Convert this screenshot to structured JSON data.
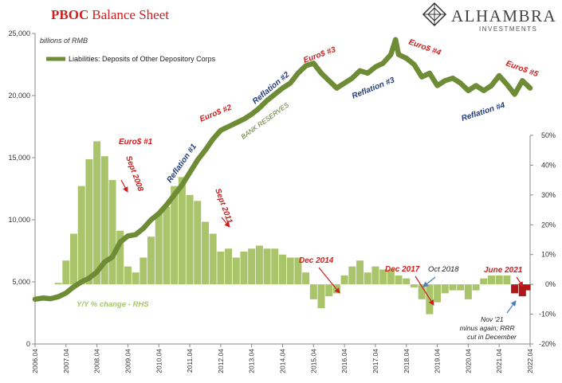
{
  "header": {
    "title_bold": "PBOC",
    "title_rest": "Balance Sheet",
    "brand_name": "ALHAMBRA",
    "brand_sub": "INVESTMENTS"
  },
  "colors": {
    "title_red": "#cc1f1f",
    "line_green": "#6e8c35",
    "bar_green": "#a9c46a",
    "bar_red": "#b01818",
    "ann_red": "#cc1f1f",
    "ann_blue": "#233c7a",
    "ann_green": "#5e7b2c",
    "arrow_red": "#cc1f1f",
    "arrow_blue": "#4d7fc0"
  },
  "chart_data": {
    "type": "line+bar",
    "unit_label": "billions of RMB",
    "left_axis": {
      "min": 0,
      "max": 25000,
      "ticks": [
        0,
        5000,
        10000,
        15000,
        20000,
        25000
      ],
      "tick_labels": [
        "0",
        "5,000",
        "10,000",
        "15,000",
        "20,000",
        "25,000"
      ]
    },
    "right_axis": {
      "min": -20,
      "max": 50,
      "ticks": [
        -20,
        -10,
        0,
        10,
        20,
        30,
        40,
        50
      ],
      "tick_labels": [
        "-20%",
        "-10%",
        "0%",
        "10%",
        "20%",
        "30%",
        "40%",
        "50%"
      ]
    },
    "x_axis": {
      "start": 2006.25,
      "end": 2022.25,
      "tick_labels": [
        "2006.04",
        "2007.04",
        "2008.04",
        "2009.04",
        "2010.04",
        "2011.04",
        "2012.04",
        "2013.04",
        "2014.04",
        "2015.04",
        "2016.04",
        "2017.04",
        "2018.04",
        "2019.04",
        "2020.04",
        "2021.04",
        "2022.04"
      ]
    },
    "line_series": {
      "name": "Liabilities: Deposits of Other Depository Corps",
      "points": [
        [
          2006.25,
          3600
        ],
        [
          2006.5,
          3700
        ],
        [
          2006.75,
          3650
        ],
        [
          2007.0,
          3800
        ],
        [
          2007.25,
          4100
        ],
        [
          2007.5,
          4600
        ],
        [
          2007.75,
          5000
        ],
        [
          2008.0,
          5300
        ],
        [
          2008.25,
          5800
        ],
        [
          2008.5,
          6600
        ],
        [
          2008.75,
          7000
        ],
        [
          2009.0,
          8200
        ],
        [
          2009.25,
          8700
        ],
        [
          2009.5,
          8800
        ],
        [
          2009.75,
          9300
        ],
        [
          2010.0,
          10000
        ],
        [
          2010.25,
          10500
        ],
        [
          2010.5,
          11200
        ],
        [
          2010.75,
          12000
        ],
        [
          2011.0,
          12800
        ],
        [
          2011.25,
          13800
        ],
        [
          2011.5,
          14800
        ],
        [
          2011.75,
          15600
        ],
        [
          2012.0,
          16500
        ],
        [
          2012.25,
          17200
        ],
        [
          2012.5,
          17500
        ],
        [
          2012.75,
          17800
        ],
        [
          2013.0,
          18100
        ],
        [
          2013.25,
          18500
        ],
        [
          2013.5,
          19000
        ],
        [
          2013.75,
          19600
        ],
        [
          2014.0,
          20100
        ],
        [
          2014.25,
          20600
        ],
        [
          2014.5,
          21000
        ],
        [
          2014.75,
          21800
        ],
        [
          2015.0,
          22400
        ],
        [
          2015.25,
          22600
        ],
        [
          2015.5,
          21800
        ],
        [
          2015.75,
          21200
        ],
        [
          2016.0,
          20600
        ],
        [
          2016.25,
          21000
        ],
        [
          2016.5,
          21400
        ],
        [
          2016.75,
          22000
        ],
        [
          2017.0,
          21800
        ],
        [
          2017.25,
          22300
        ],
        [
          2017.5,
          22600
        ],
        [
          2017.75,
          23300
        ],
        [
          2017.9,
          24500
        ],
        [
          2018.0,
          23300
        ],
        [
          2018.25,
          23000
        ],
        [
          2018.5,
          22500
        ],
        [
          2018.75,
          21500
        ],
        [
          2019.0,
          21800
        ],
        [
          2019.25,
          20800
        ],
        [
          2019.5,
          21200
        ],
        [
          2019.75,
          21400
        ],
        [
          2020.0,
          21000
        ],
        [
          2020.25,
          20400
        ],
        [
          2020.5,
          20800
        ],
        [
          2020.75,
          20400
        ],
        [
          2021.0,
          20800
        ],
        [
          2021.25,
          21600
        ],
        [
          2021.5,
          20900
        ],
        [
          2021.75,
          20100
        ],
        [
          2022.0,
          21200
        ],
        [
          2022.25,
          20600
        ]
      ]
    },
    "bar_series": {
      "name": "Y/Y % change - RHS",
      "points": [
        [
          2007.0,
          0.5
        ],
        [
          2007.25,
          8
        ],
        [
          2007.5,
          17
        ],
        [
          2007.75,
          33
        ],
        [
          2008.0,
          42
        ],
        [
          2008.25,
          48
        ],
        [
          2008.5,
          43
        ],
        [
          2008.75,
          35
        ],
        [
          2009.0,
          18
        ],
        [
          2009.25,
          6
        ],
        [
          2009.5,
          4
        ],
        [
          2009.75,
          9
        ],
        [
          2010.0,
          16
        ],
        [
          2010.25,
          24
        ],
        [
          2010.5,
          26
        ],
        [
          2010.75,
          33
        ],
        [
          2011.0,
          36
        ],
        [
          2011.25,
          30
        ],
        [
          2011.5,
          28
        ],
        [
          2011.75,
          21
        ],
        [
          2012.0,
          17
        ],
        [
          2012.25,
          11
        ],
        [
          2012.5,
          12
        ],
        [
          2012.75,
          9
        ],
        [
          2013.0,
          11
        ],
        [
          2013.25,
          12
        ],
        [
          2013.5,
          13
        ],
        [
          2013.75,
          12
        ],
        [
          2014.0,
          12
        ],
        [
          2014.25,
          10
        ],
        [
          2014.5,
          9
        ],
        [
          2014.75,
          9
        ],
        [
          2015.0,
          4
        ],
        [
          2015.25,
          -5
        ],
        [
          2015.5,
          -8
        ],
        [
          2015.75,
          -4
        ],
        [
          2016.0,
          -3
        ],
        [
          2016.25,
          3
        ],
        [
          2016.5,
          6
        ],
        [
          2016.75,
          8
        ],
        [
          2017.0,
          4
        ],
        [
          2017.25,
          6
        ],
        [
          2017.5,
          5
        ],
        [
          2017.75,
          5
        ],
        [
          2018.0,
          3
        ],
        [
          2018.25,
          2
        ],
        [
          2018.5,
          -1
        ],
        [
          2018.75,
          -5
        ],
        [
          2019.0,
          -10
        ],
        [
          2019.25,
          -6
        ],
        [
          2019.5,
          -3
        ],
        [
          2019.75,
          -2
        ],
        [
          2020.0,
          -2
        ],
        [
          2020.25,
          -5
        ],
        [
          2020.5,
          -2
        ],
        [
          2020.75,
          2
        ],
        [
          2021.0,
          3
        ],
        [
          2021.25,
          3
        ],
        [
          2021.5,
          3
        ],
        [
          2021.75,
          -3
        ],
        [
          2022.0,
          -4
        ],
        [
          2022.15,
          -2
        ]
      ]
    },
    "annotations": {
      "euro1": "Euro$ #1",
      "sept2008": "Sept 2008",
      "euro2": "Euro$ #2",
      "sept2011": "Sept 2011",
      "euro3": "Euro$ #3",
      "euro4": "Euro$ #4",
      "euro5": "Euro$ #5",
      "reflation1": "Reflation #1",
      "reflation2": "Reflation #2",
      "reflation3": "Reflation #3",
      "reflation4": "Reflation #4",
      "bank_reserves": "BANK RESERVES",
      "dec2014": "Dec 2014",
      "dec2017": "Dec 2017",
      "oct2018": "Oct 2018",
      "june2021": "June 2021",
      "nov21_line1": "Nov '21",
      "nov21_line2": "minus again; RRR",
      "nov21_line3": "cut in December"
    }
  }
}
